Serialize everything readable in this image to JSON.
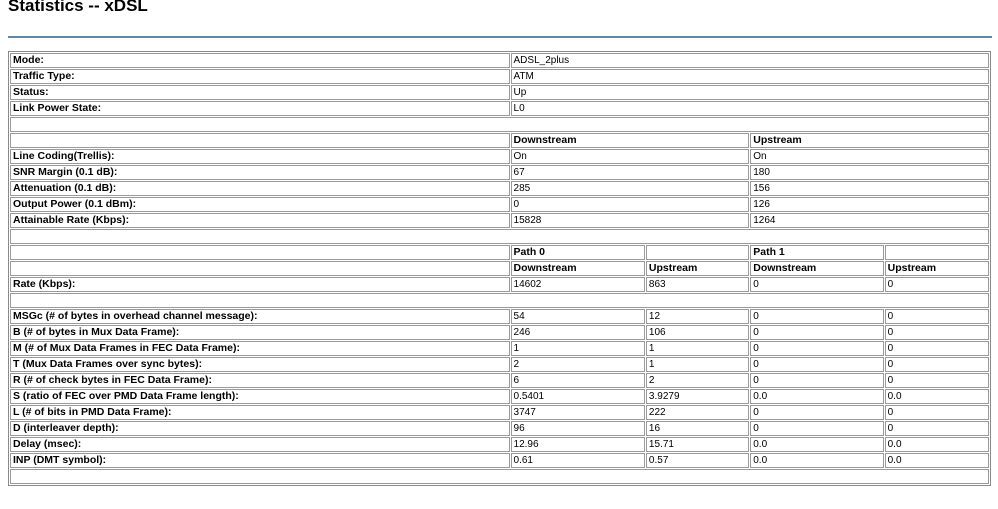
{
  "page_title": "Statistics -- xDSL",
  "colors": {
    "rule": "#5b8aa6",
    "border": "#9a9a9a"
  },
  "status": [
    {
      "label": "Mode:",
      "value": "ADSL_2plus"
    },
    {
      "label": "Traffic Type:",
      "value": "ATM"
    },
    {
      "label": "Status:",
      "value": "Up"
    },
    {
      "label": "Link Power State:",
      "value": "L0"
    }
  ],
  "line": {
    "headers": [
      "Downstream",
      "Upstream"
    ],
    "rows": [
      {
        "label": "Line Coding(Trellis):",
        "values": [
          "On",
          "On"
        ]
      },
      {
        "label": "SNR Margin (0.1 dB):",
        "values": [
          "67",
          "180"
        ]
      },
      {
        "label": "Attenuation (0.1 dB):",
        "values": [
          "285",
          "156"
        ]
      },
      {
        "label": "Output Power (0.1 dBm):",
        "values": [
          "0",
          "126"
        ]
      },
      {
        "label": "Attainable Rate (Kbps):",
        "values": [
          "15828",
          "1264"
        ]
      }
    ]
  },
  "paths": {
    "path_headers": [
      "Path 0",
      "",
      "Path 1",
      ""
    ],
    "dir_headers": [
      "Downstream",
      "Upstream",
      "Downstream",
      "Upstream"
    ],
    "rate": {
      "label": "Rate (Kbps):",
      "values": [
        "14602",
        "863",
        "0",
        "0"
      ]
    },
    "rows": [
      {
        "label": "MSGc (# of bytes in overhead channel message):",
        "values": [
          "54",
          "12",
          "0",
          "0"
        ]
      },
      {
        "label": "B (# of bytes in Mux Data Frame):",
        "values": [
          "246",
          "106",
          "0",
          "0"
        ]
      },
      {
        "label": "M (# of Mux Data Frames in FEC Data Frame):",
        "values": [
          "1",
          "1",
          "0",
          "0"
        ]
      },
      {
        "label": "T (Mux Data Frames over sync bytes):",
        "values": [
          "2",
          "1",
          "0",
          "0"
        ]
      },
      {
        "label": "R (# of check bytes in FEC Data Frame):",
        "values": [
          "6",
          "2",
          "0",
          "0"
        ]
      },
      {
        "label": "S (ratio of FEC over PMD Data Frame length):",
        "values": [
          "0.5401",
          "3.9279",
          "0.0",
          "0.0"
        ]
      },
      {
        "label": "L (# of bits in PMD Data Frame):",
        "values": [
          "3747",
          "222",
          "0",
          "0"
        ]
      },
      {
        "label": "D (interleaver depth):",
        "values": [
          "96",
          "16",
          "0",
          "0"
        ]
      },
      {
        "label": "Delay (msec):",
        "values": [
          "12.96",
          "15.71",
          "0.0",
          "0.0"
        ]
      },
      {
        "label": "INP (DMT symbol):",
        "values": [
          "0.61",
          "0.57",
          "0.0",
          "0.0"
        ]
      }
    ]
  }
}
